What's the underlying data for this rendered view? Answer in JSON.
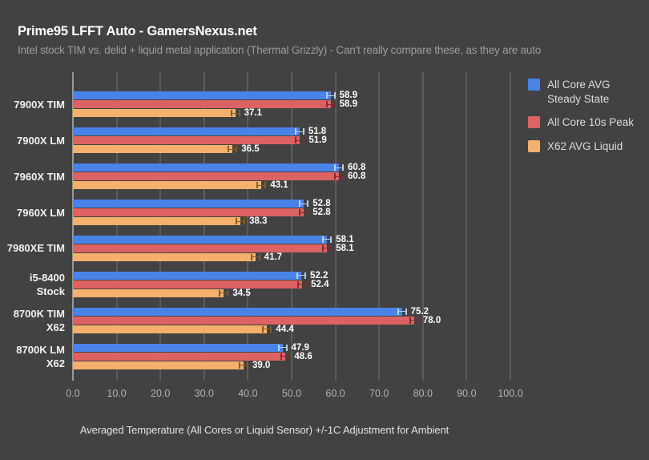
{
  "header": {
    "title": "Prime95 LFFT Auto - GamersNexus.net",
    "subtitle": "Intel stock TIM vs. delid + liquid metal application (Thermal Grizzly) - Can't really compare these, as they are auto"
  },
  "colors": {
    "background": "#424242",
    "gridline": "#757575",
    "zero_axis": "#f0f0f0",
    "blue": "#4a83e8",
    "blue_error": "#b8cdf5",
    "red": "#dc6263",
    "red_error": "#7e2c2c",
    "orange": "#f5b06c",
    "orange_error": "#8a5d22"
  },
  "chart_data": {
    "type": "bar",
    "orientation": "horizontal",
    "title": "Prime95 LFFT Auto - GamersNexus.net",
    "subtitle": "Intel stock TIM vs. delid + liquid metal application (Thermal Grizzly) - Can't really compare these, as they are auto",
    "xlabel": "Averaged Temperature (All Cores or Liquid Sensor) +/-1C Adjustment for Ambient",
    "xlim": [
      0,
      100
    ],
    "xticks": [
      "0.0",
      "10.0",
      "20.0",
      "30.0",
      "40.0",
      "50.0",
      "60.0",
      "70.0",
      "80.0",
      "90.0",
      "100.0"
    ],
    "grid": true,
    "error_bars": "+/-1C",
    "legend_position": "right",
    "categories": [
      [
        "7900X TIM"
      ],
      [
        "7900X LM"
      ],
      [
        "7960X TIM"
      ],
      [
        "7960X LM"
      ],
      [
        "7980XE TIM"
      ],
      [
        "i5-8400",
        "Stock"
      ],
      [
        "8700K TIM",
        "X62"
      ],
      [
        "8700K LM",
        "X62"
      ]
    ],
    "series": [
      {
        "name": "All Core AVG Steady State",
        "legend_lines": [
          "All Core AVG",
          "Steady State"
        ],
        "color": "#4a83e8",
        "error_color": "#b8cdf5",
        "values": [
          58.9,
          51.8,
          60.8,
          52.8,
          58.1,
          52.2,
          75.2,
          47.9
        ]
      },
      {
        "name": "All Core 10s Peak",
        "legend_lines": [
          "All Core 10s Peak"
        ],
        "color": "#dc6263",
        "error_color": "#7e2c2c",
        "values": [
          58.9,
          51.9,
          60.8,
          52.8,
          58.1,
          52.4,
          78.0,
          48.6
        ]
      },
      {
        "name": "X62 AVG Liquid",
        "legend_lines": [
          "X62 AVG Liquid"
        ],
        "color": "#f5b06c",
        "error_color": "#8a5d22",
        "values": [
          37.1,
          36.5,
          43.1,
          38.3,
          41.7,
          34.5,
          44.4,
          39.0
        ]
      }
    ]
  }
}
